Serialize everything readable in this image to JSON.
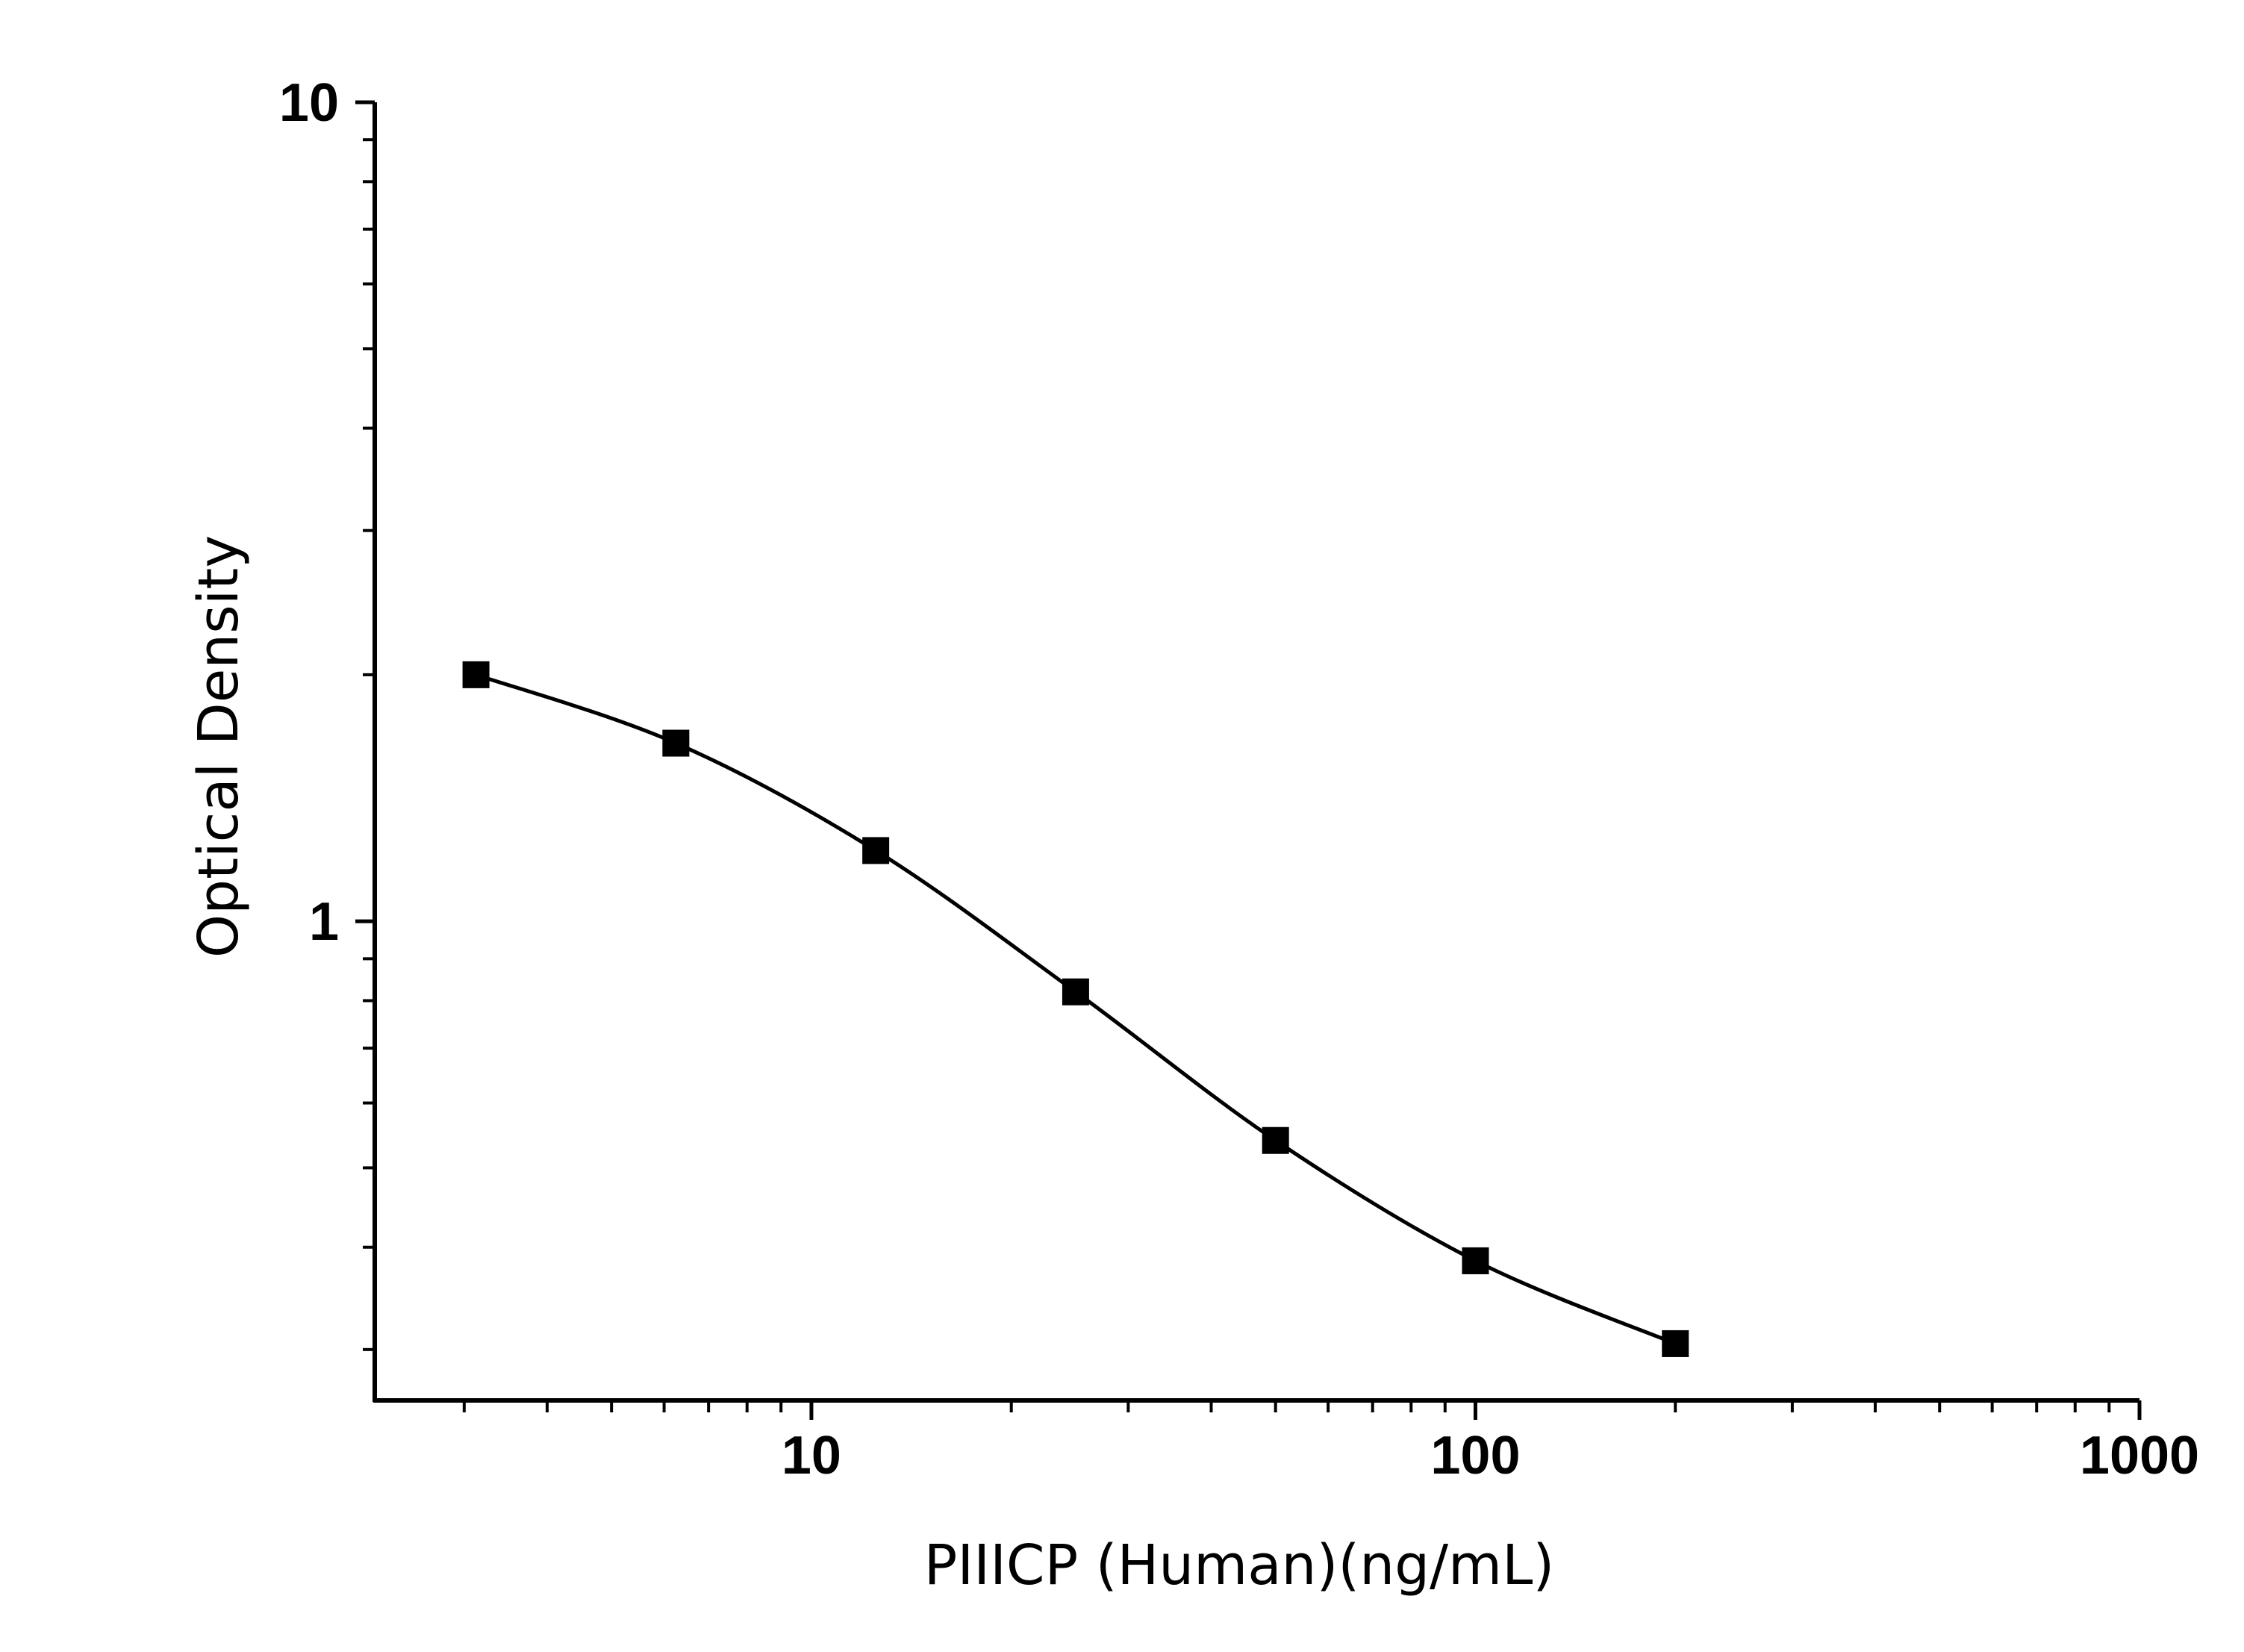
{
  "chart_data": {
    "type": "scatter",
    "title": "",
    "xlabel": "PIIICP (Human)(ng/mL)",
    "ylabel": "Optical Density",
    "x_scale": "log",
    "y_scale": "log",
    "xlim": [
      2.2,
      1000
    ],
    "ylim": [
      0.26,
      10
    ],
    "x_ticks": [
      "10",
      "100",
      "1000"
    ],
    "y_ticks": [
      "1",
      "10"
    ],
    "grid": false,
    "legend": "none",
    "series": [
      {
        "x": [
          3.125,
          6.25,
          12.5,
          25,
          50,
          100,
          200
        ],
        "y": [
          2.0,
          1.65,
          1.22,
          0.82,
          0.54,
          0.385,
          0.305
        ],
        "marker": "square",
        "line": "smooth",
        "color": "#000000"
      }
    ]
  }
}
